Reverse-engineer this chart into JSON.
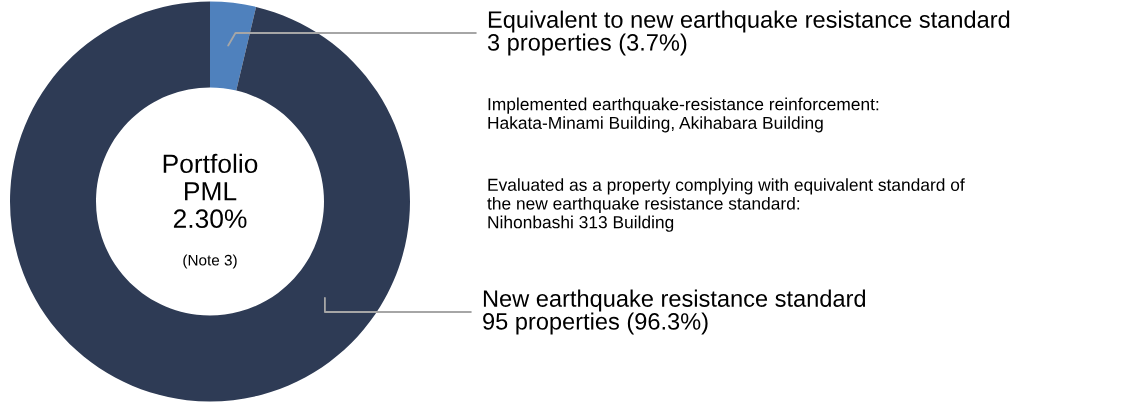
{
  "chart_data": {
    "type": "donut",
    "categories": [
      "Equivalent to new earthquake resistance standard",
      "New earthquake resistance standard"
    ],
    "values": [
      3.7,
      96.3
    ],
    "value_labels": [
      "3 properties (3.7%)",
      "95 properties (96.3%)"
    ],
    "colors": [
      "#4f81bd",
      "#2e3b55"
    ],
    "annotations": [
      "Portfolio\nPML\n2.30%",
      "(Note 3)",
      "Implemented earthquake-resistance reinforcement:\nHakata-Minami Building, Akihabara Building",
      "Evaluated as a property complying with equivalent standard of\nthe new earthquake resistance standard:\nNihonbashi 313 Building"
    ]
  }
}
